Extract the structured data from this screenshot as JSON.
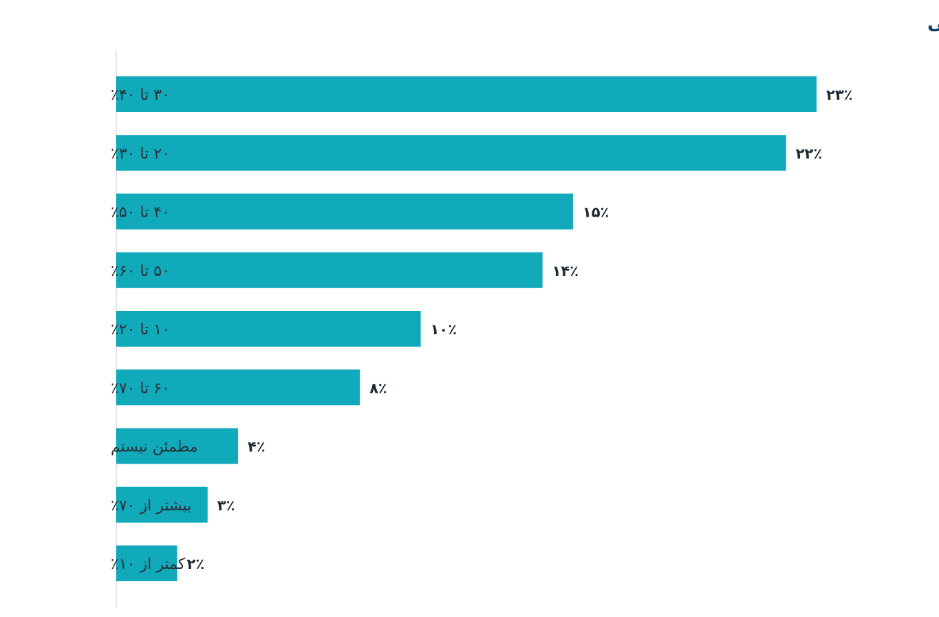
{
  "chart_data": {
    "type": "bar",
    "orientation": "horizontal",
    "title": "میانگین نرخ باز شدن ایمیل‌های بازاریابی",
    "categories": [
      "۳۰ تا ۴۰٪",
      "۲۰ تا ۳۰٪",
      "۴۰ تا ۵۰٪",
      "۵۰ تا ۶۰٪",
      "۱۰ تا ۲۰٪",
      "۶۰ تا ۷۰٪",
      "مطمئن نیستم",
      "بیشتر از ۷۰٪",
      "کمتر از ۱۰٪"
    ],
    "values": [
      23,
      22,
      15,
      14,
      10,
      8,
      4,
      3,
      2
    ],
    "value_labels": [
      "۲۳٪",
      "۲۲٪",
      "۱۵٪",
      "۱۴٪",
      "۱۰٪",
      "۸٪",
      "۴٪",
      "۳٪",
      "۲٪"
    ],
    "xlim": [
      0,
      23
    ],
    "xlabel": "",
    "ylabel": "",
    "grid": false,
    "legend": "none",
    "colors": {
      "bar": "#11aabb",
      "title": "#0f3e66",
      "category_text": "#2b2f36",
      "value_text": "#1f2933",
      "axis_line": "#e6e6e6"
    }
  }
}
